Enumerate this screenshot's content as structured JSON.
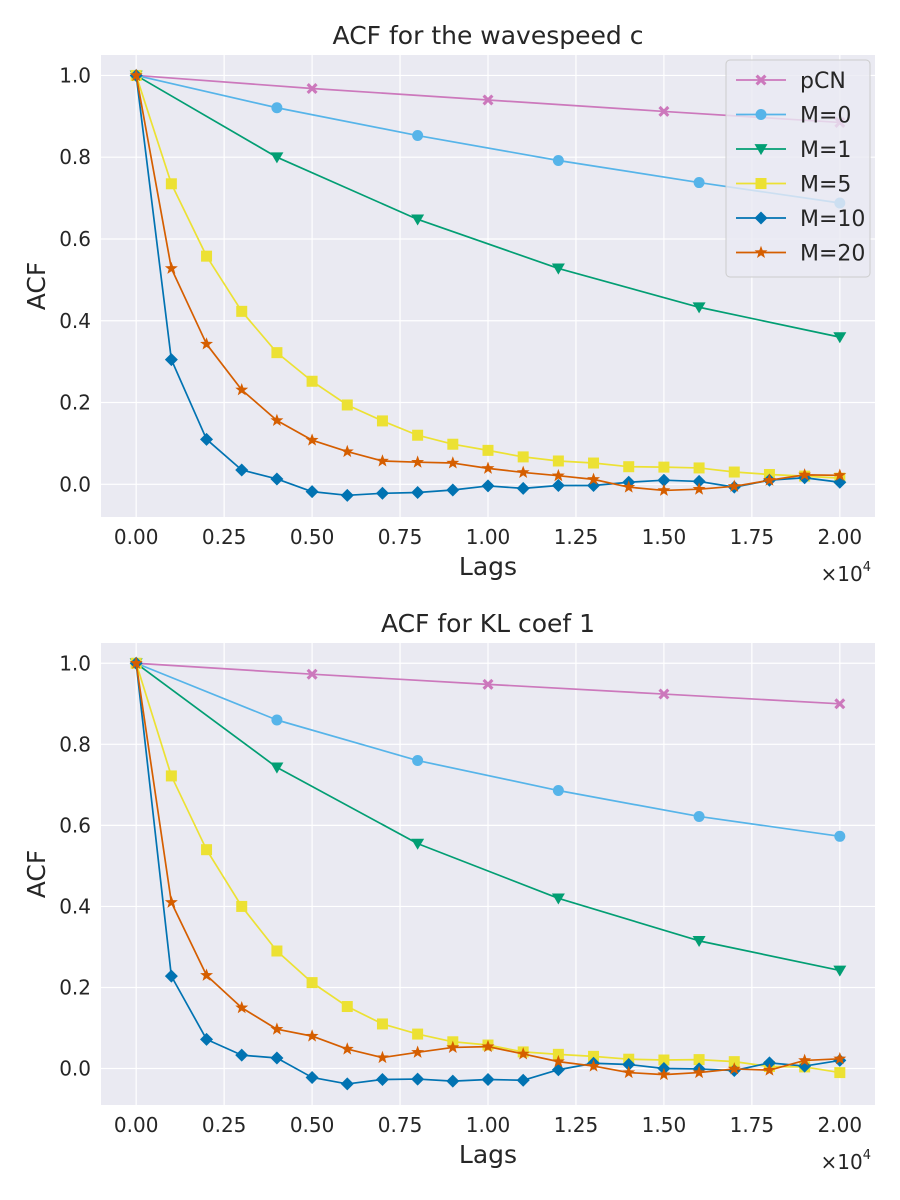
{
  "chart_data": [
    {
      "type": "line",
      "title": "ACF for the wavespeed c",
      "xlabel": "Lags",
      "ylabel": "ACF",
      "x_offset_text": "×10",
      "x_offset_exp": "4",
      "xlim": [
        -0.1,
        2.1
      ],
      "ylim": [
        -0.08,
        1.05
      ],
      "xticks": [
        0,
        0.25,
        0.5,
        0.75,
        1.0,
        1.25,
        1.5,
        1.75,
        2.0
      ],
      "xtick_labels": [
        "0.00",
        "0.25",
        "0.50",
        "0.75",
        "1.00",
        "1.25",
        "1.50",
        "1.75",
        "2.00"
      ],
      "yticks": [
        0,
        0.2,
        0.4,
        0.6,
        0.8,
        1.0
      ],
      "ytick_labels": [
        "0.0",
        "0.2",
        "0.4",
        "0.6",
        "0.8",
        "1.0"
      ],
      "grid": true,
      "legend": "top-right",
      "series": [
        {
          "name": "pCN",
          "color": "#cc78bc",
          "marker": "X",
          "x": [
            0,
            0.5,
            1.0,
            1.5,
            2.0
          ],
          "y": [
            1.0,
            0.968,
            0.94,
            0.912,
            0.885
          ]
        },
        {
          "name": "M=0",
          "color": "#56b4e9",
          "marker": "o",
          "x": [
            0,
            0.4,
            0.8,
            1.2,
            1.6,
            2.0
          ],
          "y": [
            1.0,
            0.921,
            0.853,
            0.792,
            0.738,
            0.688
          ]
        },
        {
          "name": "M=1",
          "color": "#029e73",
          "marker": "v",
          "x": [
            0,
            0.4,
            0.8,
            1.2,
            1.6,
            2.0
          ],
          "y": [
            1.0,
            0.8,
            0.648,
            0.528,
            0.433,
            0.36
          ]
        },
        {
          "name": "M=5",
          "color": "#ece133",
          "marker": "s",
          "x": [
            0,
            0.1,
            0.2,
            0.3,
            0.4,
            0.5,
            0.6,
            0.7,
            0.8,
            0.9,
            1.0,
            1.1,
            1.2,
            1.3,
            1.4,
            1.5,
            1.6,
            1.7,
            1.8,
            1.9,
            2.0
          ],
          "y": [
            1.0,
            0.735,
            0.558,
            0.423,
            0.322,
            0.252,
            0.194,
            0.155,
            0.12,
            0.098,
            0.083,
            0.067,
            0.057,
            0.052,
            0.043,
            0.042,
            0.04,
            0.03,
            0.024,
            0.02,
            0.015
          ]
        },
        {
          "name": "M=10",
          "color": "#0173b2",
          "marker": "D",
          "x": [
            0,
            0.1,
            0.2,
            0.3,
            0.4,
            0.5,
            0.6,
            0.7,
            0.8,
            0.9,
            1.0,
            1.1,
            1.2,
            1.3,
            1.4,
            1.5,
            1.6,
            1.7,
            1.8,
            1.9,
            2.0
          ],
          "y": [
            1.0,
            0.305,
            0.11,
            0.035,
            0.013,
            -0.018,
            -0.027,
            -0.022,
            -0.02,
            -0.014,
            -0.004,
            -0.01,
            -0.003,
            -0.003,
            0.005,
            0.01,
            0.007,
            -0.007,
            0.01,
            0.016,
            0.005
          ]
        },
        {
          "name": "M=20",
          "color": "#d55e00",
          "marker": "*",
          "x": [
            0,
            0.1,
            0.2,
            0.3,
            0.4,
            0.5,
            0.6,
            0.7,
            0.8,
            0.9,
            1.0,
            1.1,
            1.2,
            1.3,
            1.4,
            1.5,
            1.6,
            1.7,
            1.8,
            1.9,
            2.0
          ],
          "y": [
            1.0,
            0.528,
            0.343,
            0.231,
            0.156,
            0.108,
            0.08,
            0.057,
            0.054,
            0.052,
            0.039,
            0.029,
            0.021,
            0.012,
            -0.007,
            -0.015,
            -0.012,
            -0.005,
            0.01,
            0.023,
            0.022
          ]
        }
      ]
    },
    {
      "type": "line",
      "title": "ACF for KL coef 1",
      "xlabel": "Lags",
      "ylabel": "ACF",
      "x_offset_text": "×10",
      "x_offset_exp": "4",
      "xlim": [
        -0.1,
        2.1
      ],
      "ylim": [
        -0.09,
        1.05
      ],
      "xticks": [
        0,
        0.25,
        0.5,
        0.75,
        1.0,
        1.25,
        1.5,
        1.75,
        2.0
      ],
      "xtick_labels": [
        "0.00",
        "0.25",
        "0.50",
        "0.75",
        "1.00",
        "1.25",
        "1.50",
        "1.75",
        "2.00"
      ],
      "yticks": [
        0,
        0.2,
        0.4,
        0.6,
        0.8,
        1.0
      ],
      "ytick_labels": [
        "0.0",
        "0.2",
        "0.4",
        "0.6",
        "0.8",
        "1.0"
      ],
      "grid": true,
      "legend": "none",
      "series": [
        {
          "name": "pCN",
          "color": "#cc78bc",
          "marker": "X",
          "x": [
            0,
            0.5,
            1.0,
            1.5,
            2.0
          ],
          "y": [
            1.0,
            0.973,
            0.948,
            0.924,
            0.9
          ]
        },
        {
          "name": "M=0",
          "color": "#56b4e9",
          "marker": "o",
          "x": [
            0,
            0.4,
            0.8,
            1.2,
            1.6,
            2.0
          ],
          "y": [
            1.0,
            0.86,
            0.76,
            0.686,
            0.622,
            0.573
          ]
        },
        {
          "name": "M=1",
          "color": "#029e73",
          "marker": "v",
          "x": [
            0,
            0.4,
            0.8,
            1.2,
            1.6,
            2.0
          ],
          "y": [
            1.0,
            0.743,
            0.555,
            0.42,
            0.315,
            0.242
          ]
        },
        {
          "name": "M=5",
          "color": "#ece133",
          "marker": "s",
          "x": [
            0,
            0.1,
            0.2,
            0.3,
            0.4,
            0.5,
            0.6,
            0.7,
            0.8,
            0.9,
            1.0,
            1.1,
            1.2,
            1.3,
            1.4,
            1.5,
            1.6,
            1.7,
            1.8,
            1.9,
            2.0
          ],
          "y": [
            1.0,
            0.722,
            0.54,
            0.4,
            0.29,
            0.212,
            0.153,
            0.11,
            0.085,
            0.066,
            0.058,
            0.041,
            0.035,
            0.03,
            0.023,
            0.021,
            0.022,
            0.017,
            0.005,
            0.004,
            -0.01
          ]
        },
        {
          "name": "M=10",
          "color": "#0173b2",
          "marker": "D",
          "x": [
            0,
            0.1,
            0.2,
            0.3,
            0.4,
            0.5,
            0.6,
            0.7,
            0.8,
            0.9,
            1.0,
            1.1,
            1.2,
            1.3,
            1.4,
            1.5,
            1.6,
            1.7,
            1.8,
            1.9,
            2.0
          ],
          "y": [
            1.0,
            0.228,
            0.072,
            0.033,
            0.026,
            -0.022,
            -0.038,
            -0.027,
            -0.026,
            -0.031,
            -0.027,
            -0.029,
            -0.003,
            0.013,
            0.01,
            0.0,
            -0.001,
            -0.005,
            0.014,
            0.006,
            0.02
          ]
        },
        {
          "name": "M=20",
          "color": "#d55e00",
          "marker": "*",
          "x": [
            0,
            0.1,
            0.2,
            0.3,
            0.4,
            0.5,
            0.6,
            0.7,
            0.8,
            0.9,
            1.0,
            1.1,
            1.2,
            1.3,
            1.4,
            1.5,
            1.6,
            1.7,
            1.8,
            1.9,
            2.0
          ],
          "y": [
            1.0,
            0.41,
            0.23,
            0.15,
            0.097,
            0.08,
            0.048,
            0.027,
            0.04,
            0.052,
            0.054,
            0.036,
            0.017,
            0.006,
            -0.01,
            -0.015,
            -0.01,
            -0.001,
            -0.004,
            0.02,
            0.024
          ]
        }
      ]
    }
  ]
}
